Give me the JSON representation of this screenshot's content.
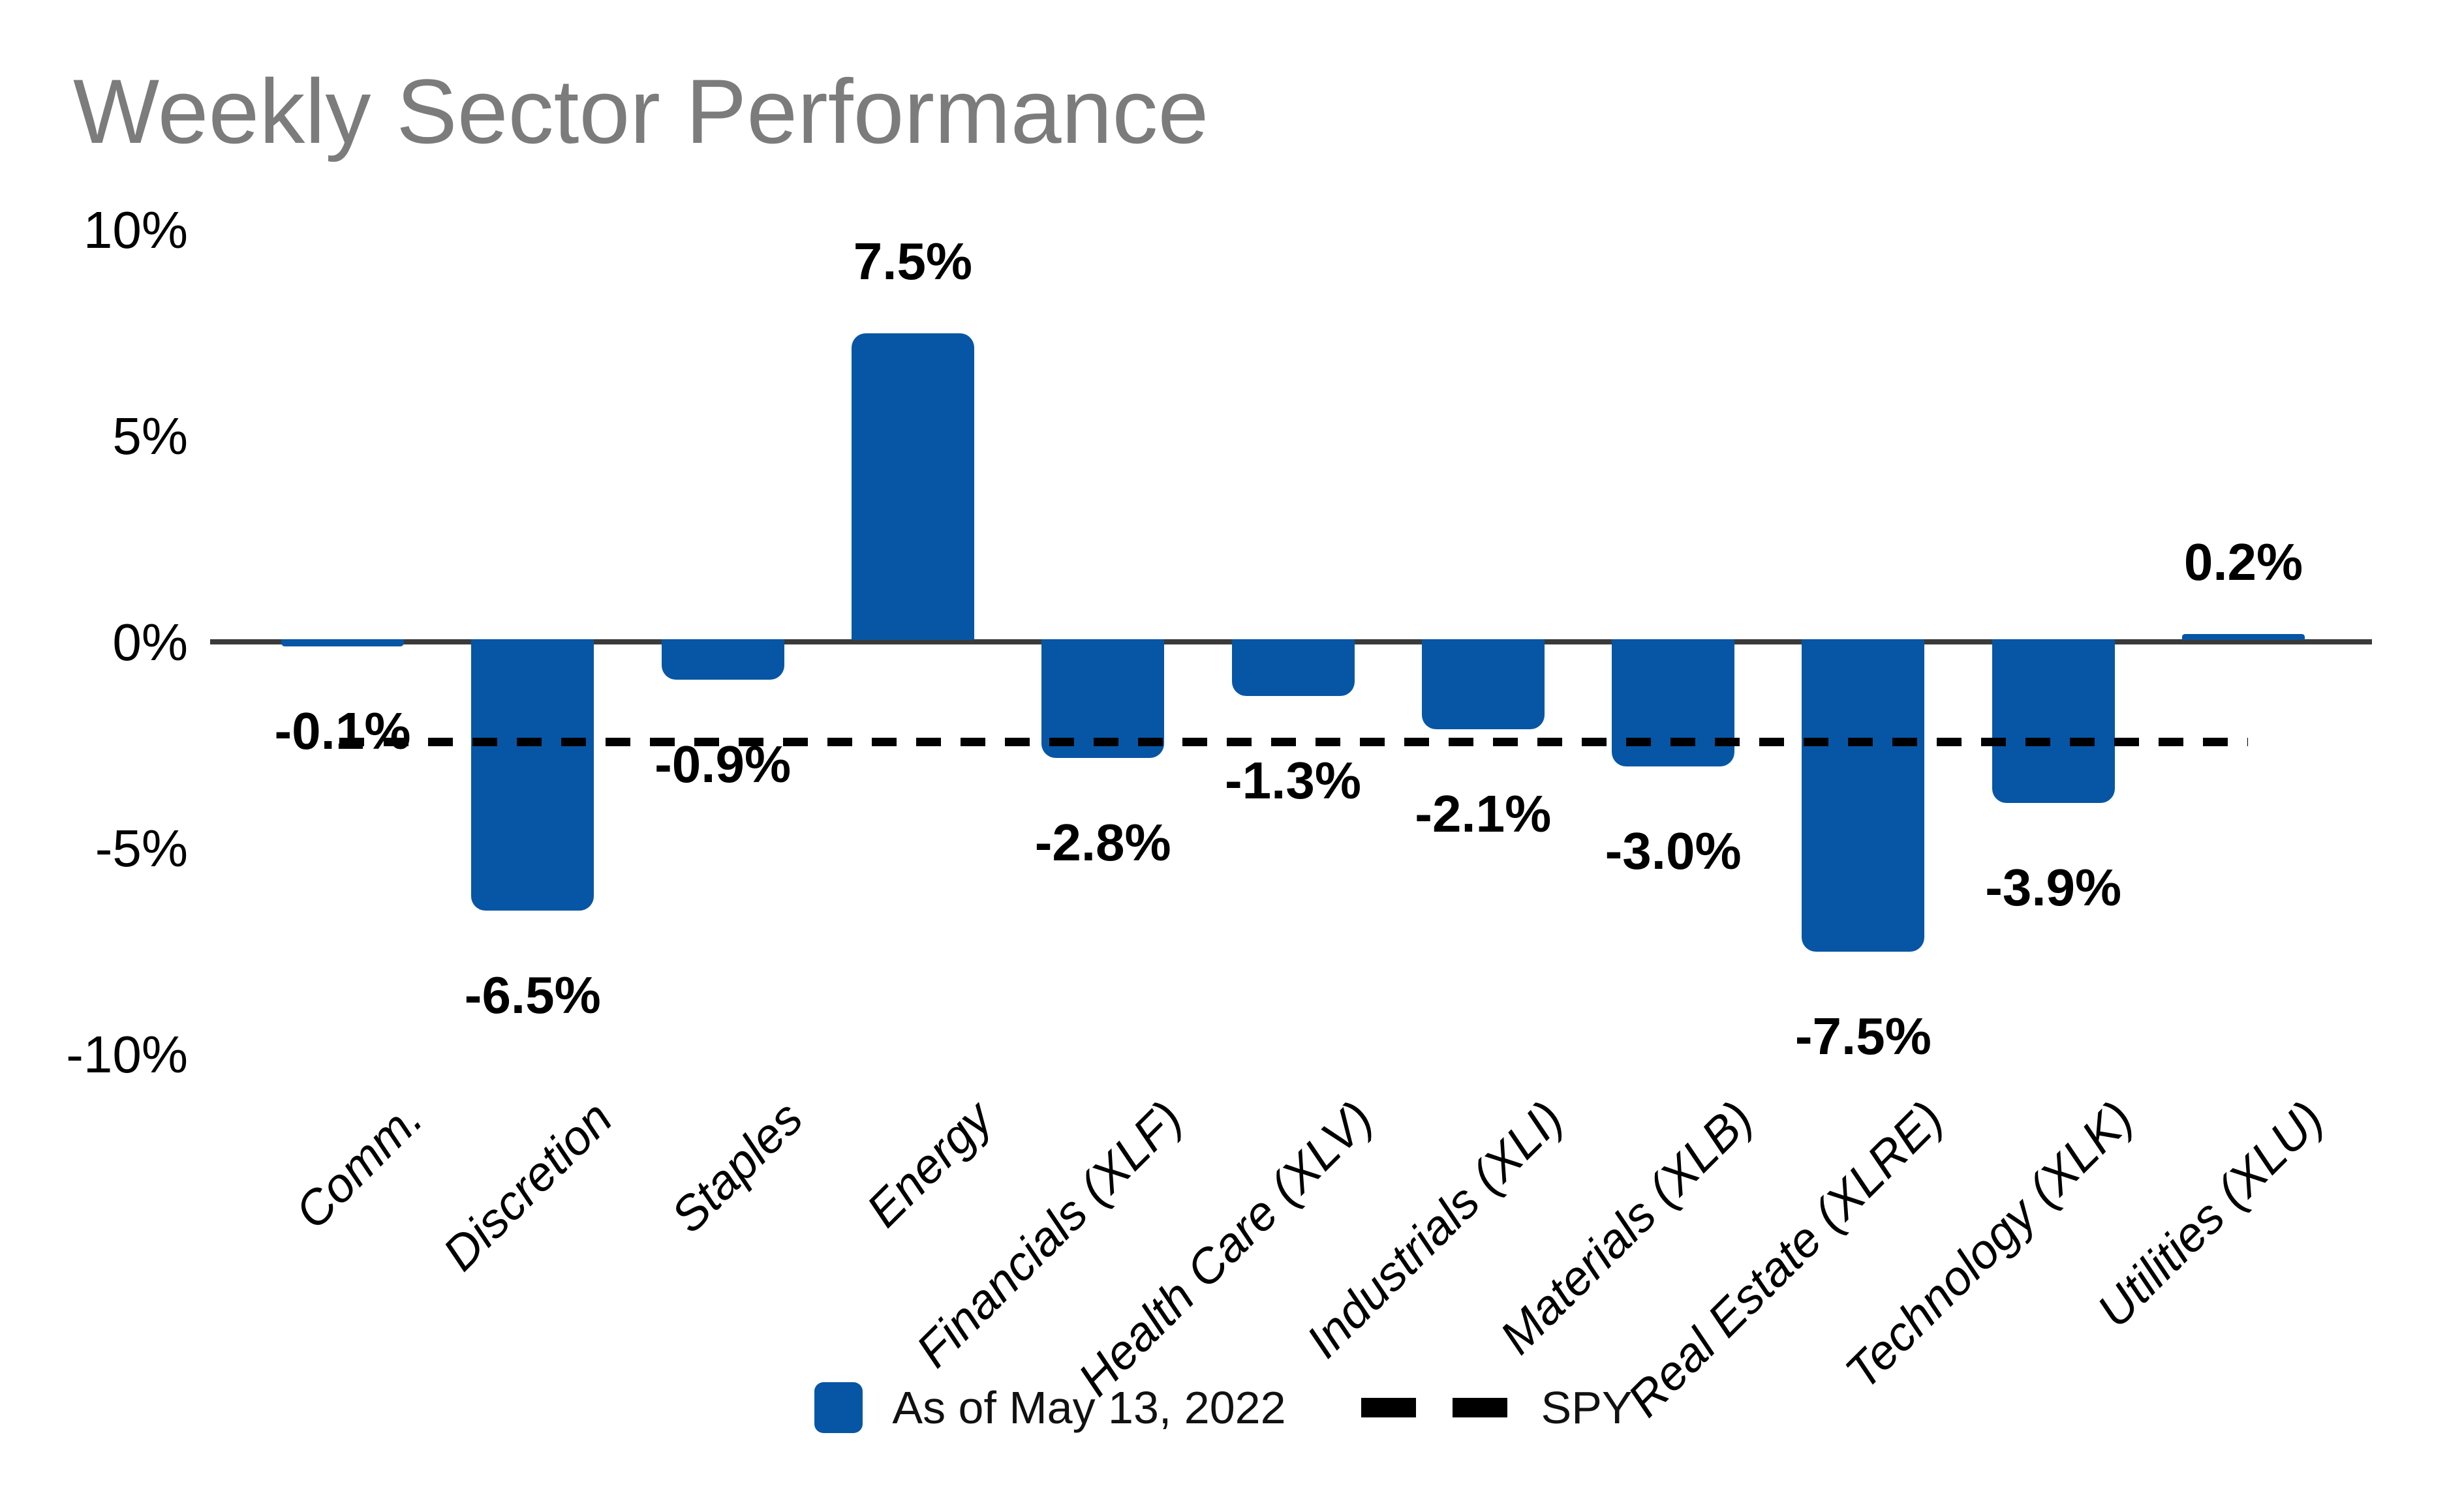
{
  "title": "Weekly Sector Performance",
  "y_axis": {
    "tick_labels": [
      "10%",
      "5%",
      "0%",
      "-5%",
      "-10%"
    ],
    "tick_values": [
      10,
      5,
      0,
      -5,
      -10
    ]
  },
  "chart_data": {
    "type": "bar",
    "title": "Weekly Sector Performance",
    "categories": [
      "Comm.",
      "Discretion",
      "Staples",
      "Energy",
      "Financials (XLF)",
      "Health Care (XLV)",
      "Industrials (XLI)",
      "Materials (XLB)",
      "Real Estate (XLRE)",
      "Technology (XLK)",
      "Utilities (XLU)"
    ],
    "values": [
      -0.1,
      -6.5,
      -0.9,
      7.5,
      -2.8,
      -1.3,
      -2.1,
      -3.0,
      -7.5,
      -3.9,
      0.2
    ],
    "data_labels": [
      "-0.1%",
      "-6.5%",
      "-0.9%",
      "7.5%",
      "-2.8%",
      "-1.3%",
      "-2.1%",
      "-3.0%",
      "-7.5%",
      "-3.9%",
      "0.2%"
    ],
    "ylim": [
      -10,
      10
    ],
    "grid": false,
    "legend_position": "bottom",
    "spy_line": {
      "value": -2.4,
      "style": "dashed"
    }
  },
  "legend": {
    "series_label": "As of May 13, 2022",
    "spy_label": "SPY"
  },
  "colors": {
    "bar": "#0756A5",
    "title_text": "#7c7c7c",
    "axis_line": "#3a3a3a",
    "spy_dash": "#000000",
    "label_text": "#000000",
    "background": "#ffffff"
  }
}
